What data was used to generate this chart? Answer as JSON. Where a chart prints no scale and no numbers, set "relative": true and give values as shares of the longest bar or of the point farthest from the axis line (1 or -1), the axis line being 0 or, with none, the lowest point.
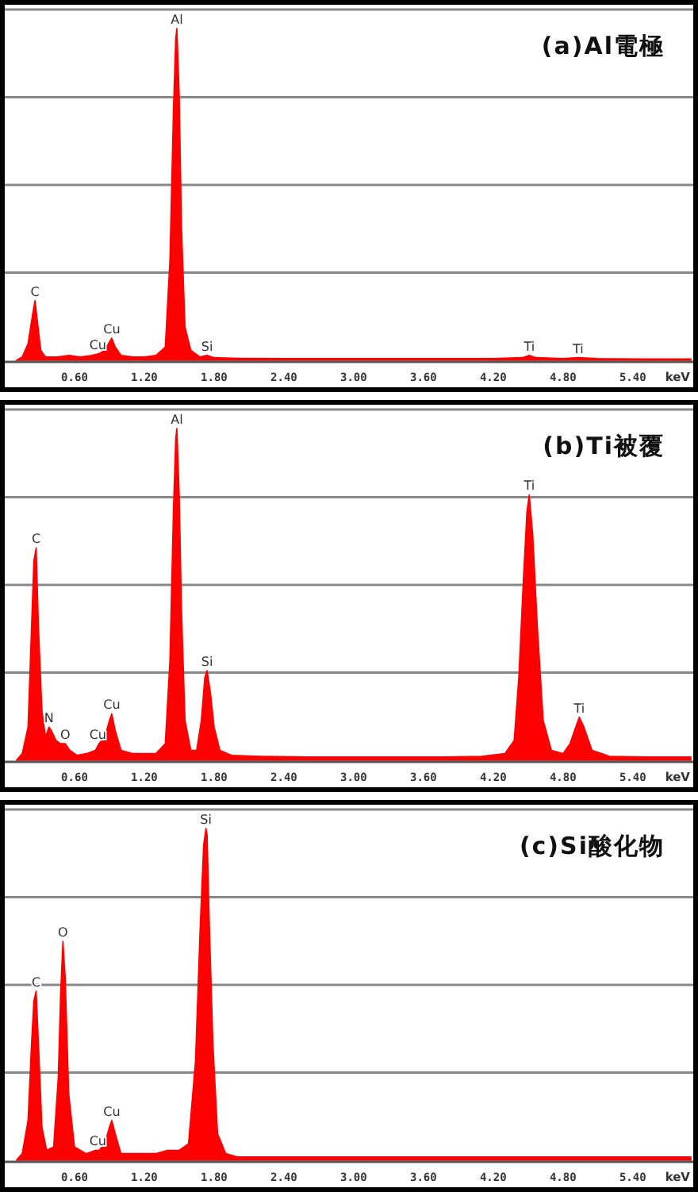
{
  "chart_data": [
    {
      "type": "area",
      "title": "(a)Al電極",
      "xlabel": "keV",
      "relative": true,
      "color": "#ff0000",
      "grid": "y",
      "xlim": [
        0,
        5.92
      ],
      "xticks": [
        {
          "value": 0.6,
          "label": "0.60"
        },
        {
          "value": 1.2,
          "label": "1.20"
        },
        {
          "value": 1.8,
          "label": "1.80"
        },
        {
          "value": 2.4,
          "label": "2.40"
        },
        {
          "value": 3.0,
          "label": "3.00"
        },
        {
          "value": 3.6,
          "label": "3.60"
        },
        {
          "value": 4.2,
          "label": "4.20"
        },
        {
          "value": 4.8,
          "label": "4.80"
        },
        {
          "value": 5.4,
          "label": "5.40"
        }
      ],
      "x": [
        0.1,
        0.15,
        0.2,
        0.24,
        0.26,
        0.28,
        0.31,
        0.35,
        0.45,
        0.55,
        0.65,
        0.75,
        0.81,
        0.86,
        0.9,
        0.92,
        0.95,
        1.0,
        1.1,
        1.2,
        1.3,
        1.38,
        1.42,
        1.45,
        1.47,
        1.48,
        1.5,
        1.52,
        1.55,
        1.6,
        1.68,
        1.74,
        1.8,
        2.0,
        2.4,
        3.0,
        3.6,
        4.2,
        4.45,
        4.51,
        4.57,
        4.8,
        4.93,
        5.1,
        5.5,
        5.9
      ],
      "values": [
        0,
        0.01,
        0.05,
        0.14,
        0.18,
        0.12,
        0.03,
        0.01,
        0.01,
        0.015,
        0.01,
        0.015,
        0.02,
        0.03,
        0.055,
        0.067,
        0.04,
        0.015,
        0.01,
        0.01,
        0.015,
        0.04,
        0.3,
        0.75,
        0.97,
        1.0,
        0.8,
        0.4,
        0.1,
        0.03,
        0.01,
        0.015,
        0.008,
        0.006,
        0.005,
        0.005,
        0.005,
        0.005,
        0.008,
        0.015,
        0.008,
        0.005,
        0.008,
        0.005,
        0.004,
        0.004
      ],
      "annotations": [
        {
          "text": "C",
          "x": 0.26,
          "y": 0.18
        },
        {
          "text": "Cu",
          "x": 0.8,
          "y": 0.02
        },
        {
          "text": "Cu",
          "x": 0.92,
          "y": 0.067
        },
        {
          "text": "Al",
          "x": 1.48,
          "y": 1.0
        },
        {
          "text": "Si",
          "x": 1.74,
          "y": 0.015
        },
        {
          "text": "Ti",
          "x": 4.51,
          "y": 0.015
        },
        {
          "text": "Ti",
          "x": 4.93,
          "y": 0.008
        }
      ]
    },
    {
      "type": "area",
      "title": "(b)Ti被覆",
      "xlabel": "keV",
      "relative": true,
      "color": "#ff0000",
      "grid": "y",
      "xlim": [
        0,
        5.92
      ],
      "xticks": [
        {
          "value": 0.6,
          "label": "0.60"
        },
        {
          "value": 1.2,
          "label": "1.20"
        },
        {
          "value": 1.8,
          "label": "1.80"
        },
        {
          "value": 2.4,
          "label": "2.40"
        },
        {
          "value": 3.0,
          "label": "3.00"
        },
        {
          "value": 3.6,
          "label": "3.60"
        },
        {
          "value": 4.2,
          "label": "4.20"
        },
        {
          "value": 4.8,
          "label": "4.80"
        },
        {
          "value": 5.4,
          "label": "5.40"
        }
      ],
      "x": [
        0.1,
        0.15,
        0.2,
        0.23,
        0.25,
        0.27,
        0.29,
        0.32,
        0.35,
        0.38,
        0.4,
        0.44,
        0.48,
        0.52,
        0.56,
        0.62,
        0.7,
        0.78,
        0.81,
        0.86,
        0.9,
        0.92,
        0.95,
        1.0,
        1.1,
        1.2,
        1.3,
        1.38,
        1.42,
        1.45,
        1.47,
        1.48,
        1.5,
        1.52,
        1.55,
        1.6,
        1.65,
        1.69,
        1.72,
        1.74,
        1.77,
        1.8,
        1.85,
        1.95,
        2.2,
        2.6,
        3.0,
        3.4,
        3.8,
        4.1,
        4.3,
        4.38,
        4.42,
        4.46,
        4.49,
        4.51,
        4.54,
        4.58,
        4.63,
        4.7,
        4.8,
        4.86,
        4.9,
        4.94,
        4.98,
        5.05,
        5.2,
        5.5,
        5.9
      ],
      "values": [
        0,
        0.02,
        0.1,
        0.4,
        0.6,
        0.64,
        0.4,
        0.15,
        0.07,
        0.1,
        0.09,
        0.06,
        0.05,
        0.05,
        0.03,
        0.015,
        0.02,
        0.03,
        0.05,
        0.07,
        0.12,
        0.14,
        0.09,
        0.03,
        0.02,
        0.02,
        0.02,
        0.05,
        0.3,
        0.75,
        0.97,
        1.0,
        0.8,
        0.45,
        0.12,
        0.03,
        0.03,
        0.12,
        0.25,
        0.27,
        0.2,
        0.1,
        0.03,
        0.015,
        0.012,
        0.01,
        0.01,
        0.01,
        0.01,
        0.012,
        0.02,
        0.06,
        0.25,
        0.55,
        0.75,
        0.8,
        0.68,
        0.4,
        0.12,
        0.03,
        0.02,
        0.05,
        0.09,
        0.13,
        0.1,
        0.03,
        0.012,
        0.01,
        0.01
      ],
      "annotations": [
        {
          "text": "C",
          "x": 0.27,
          "y": 0.64
        },
        {
          "text": "N",
          "x": 0.38,
          "y": 0.1
        },
        {
          "text": "O",
          "x": 0.52,
          "y": 0.05
        },
        {
          "text": "Cu",
          "x": 0.8,
          "y": 0.05
        },
        {
          "text": "Cu",
          "x": 0.92,
          "y": 0.14
        },
        {
          "text": "Al",
          "x": 1.48,
          "y": 1.0
        },
        {
          "text": "Si",
          "x": 1.74,
          "y": 0.27
        },
        {
          "text": "Ti",
          "x": 4.51,
          "y": 0.8
        },
        {
          "text": "Ti",
          "x": 4.94,
          "y": 0.13
        }
      ]
    },
    {
      "type": "area",
      "title": "(c)Si酸化物",
      "xlabel": "keV",
      "relative": true,
      "color": "#ff0000",
      "grid": "y",
      "xlim": [
        0,
        5.92
      ],
      "xticks": [
        {
          "value": 0.6,
          "label": "0.60"
        },
        {
          "value": 1.2,
          "label": "1.20"
        },
        {
          "value": 1.8,
          "label": "1.80"
        },
        {
          "value": 2.4,
          "label": "2.40"
        },
        {
          "value": 3.0,
          "label": "3.00"
        },
        {
          "value": 3.6,
          "label": "3.60"
        },
        {
          "value": 4.2,
          "label": "4.20"
        },
        {
          "value": 4.8,
          "label": "4.80"
        },
        {
          "value": 5.4,
          "label": "5.40"
        }
      ],
      "x": [
        0.1,
        0.15,
        0.2,
        0.23,
        0.25,
        0.27,
        0.29,
        0.32,
        0.36,
        0.42,
        0.46,
        0.48,
        0.5,
        0.52,
        0.55,
        0.6,
        0.7,
        0.78,
        0.81,
        0.86,
        0.9,
        0.92,
        0.95,
        1.0,
        1.1,
        1.2,
        1.3,
        1.4,
        1.5,
        1.58,
        1.64,
        1.68,
        1.71,
        1.73,
        1.74,
        1.76,
        1.79,
        1.83,
        1.9,
        2.0,
        2.4,
        3.0,
        3.6,
        4.2,
        4.8,
        5.4,
        5.9
      ],
      "values": [
        0,
        0.02,
        0.12,
        0.35,
        0.48,
        0.51,
        0.35,
        0.1,
        0.03,
        0.04,
        0.25,
        0.5,
        0.66,
        0.55,
        0.2,
        0.04,
        0.02,
        0.03,
        0.03,
        0.05,
        0.1,
        0.12,
        0.08,
        0.02,
        0.02,
        0.02,
        0.02,
        0.03,
        0.03,
        0.05,
        0.3,
        0.7,
        0.95,
        1.0,
        0.98,
        0.7,
        0.35,
        0.08,
        0.02,
        0.01,
        0.01,
        0.01,
        0.01,
        0.01,
        0.01,
        0.01,
        0.01
      ],
      "annotations": [
        {
          "text": "C",
          "x": 0.27,
          "y": 0.51
        },
        {
          "text": "O",
          "x": 0.5,
          "y": 0.66
        },
        {
          "text": "Cu",
          "x": 0.8,
          "y": 0.03
        },
        {
          "text": "Cu",
          "x": 0.92,
          "y": 0.12
        },
        {
          "text": "Si",
          "x": 1.73,
          "y": 1.0
        }
      ]
    }
  ]
}
